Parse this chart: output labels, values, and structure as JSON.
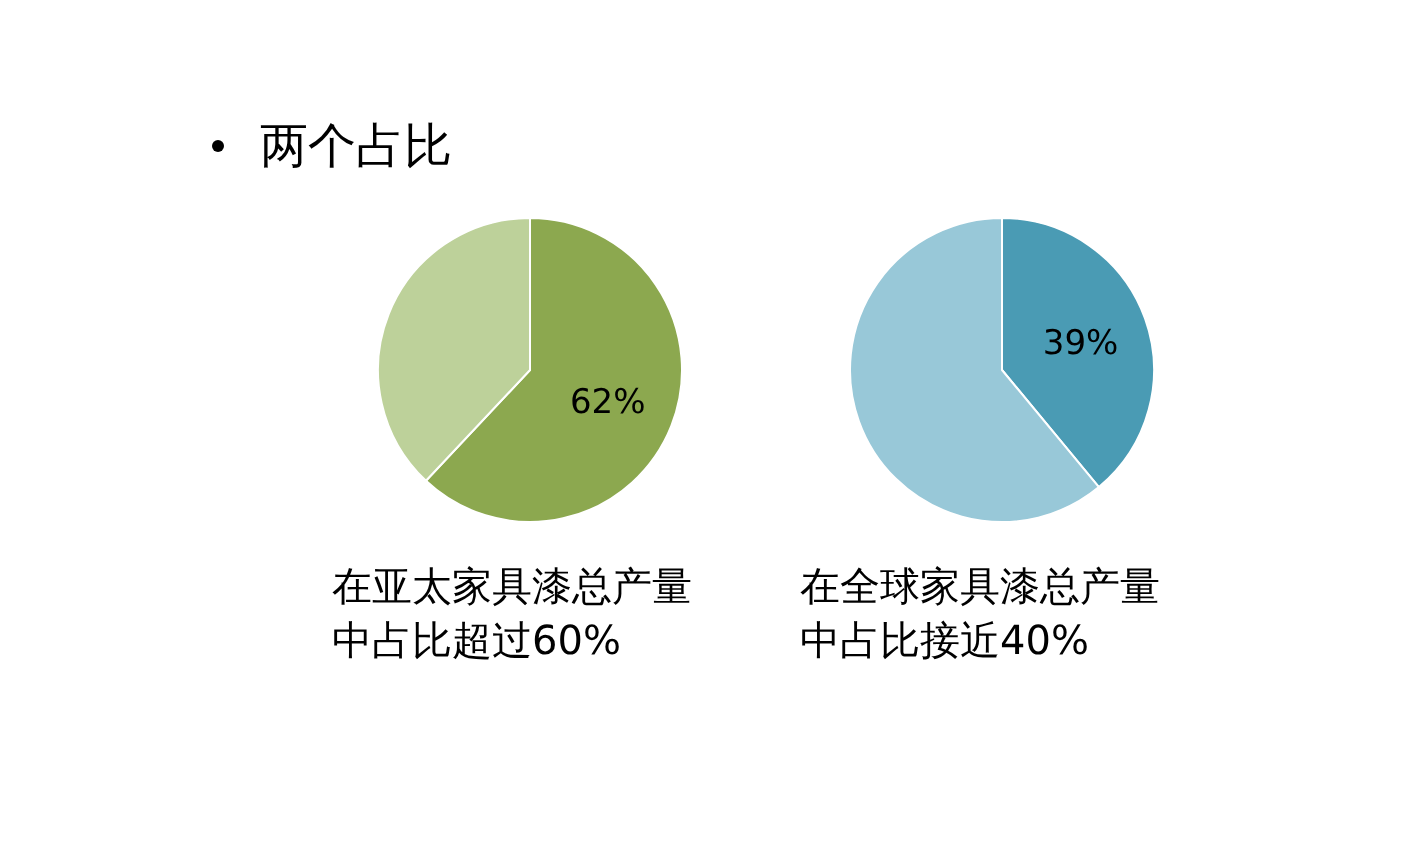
{
  "chart_data": [
    {
      "type": "pie",
      "title": "两个占比",
      "categories": [
        null,
        null
      ],
      "values": [
        62,
        38
      ],
      "colors": [
        "#8ca84f",
        "#bdd19a"
      ],
      "value_labels": [
        "62%",
        null
      ],
      "annotations": [
        "在亚太家具漆总产量中占比超过60%"
      ]
    },
    {
      "type": "pie",
      "categories": [
        null,
        null
      ],
      "values": [
        39,
        61
      ],
      "colors": [
        "#4a9bb4",
        "#98c8d8"
      ],
      "value_labels": [
        "39%",
        null
      ],
      "annotations": [
        "在全球家具漆总产量中占比接近40%"
      ]
    }
  ]
}
